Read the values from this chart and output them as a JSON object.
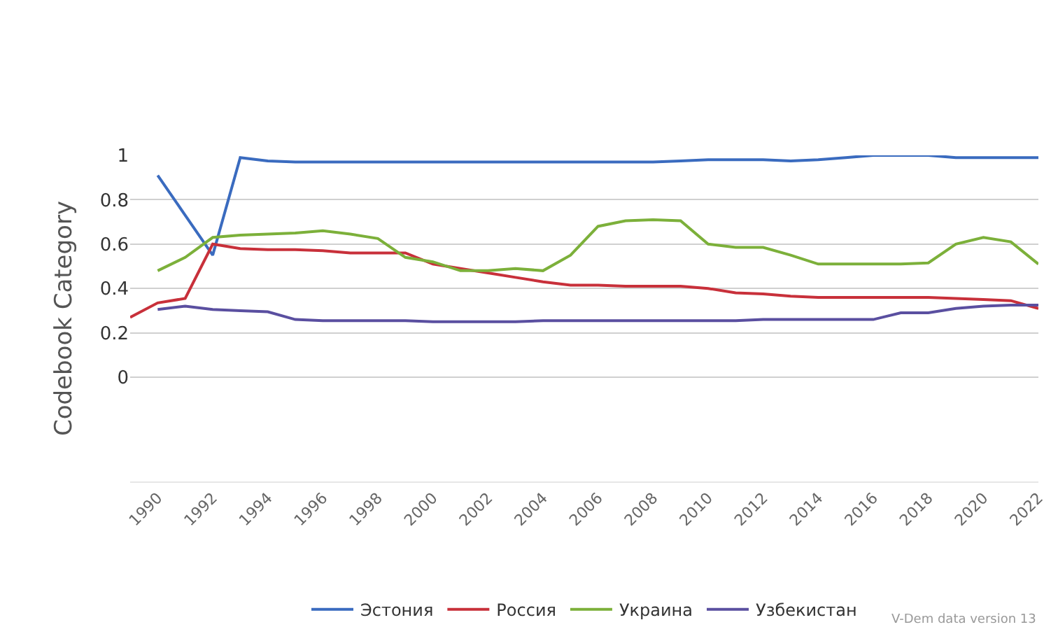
{
  "chart_data": {
    "type": "line",
    "ylabel": "Codebook Category",
    "xlim": [
      1989,
      2022
    ],
    "xticks": [
      1990,
      1992,
      1994,
      1996,
      1998,
      2000,
      2002,
      2004,
      2006,
      2008,
      2010,
      2012,
      2014,
      2016,
      2018,
      2020,
      2022
    ],
    "ylim": [
      -0.47,
      1
    ],
    "yticks": [
      0,
      0.2,
      0.4,
      0.6,
      0.8,
      1
    ],
    "grid": "y",
    "legend": "bottom",
    "marker": "none",
    "line_style": "solid",
    "annotations": [
      "V-Dem data version 13"
    ],
    "series": [
      {
        "name": "Эстония",
        "color": "#3a6bbf",
        "x": [
          1990,
          1991,
          1992,
          1993,
          1994,
          1995,
          1996,
          1997,
          1998,
          1999,
          2000,
          2001,
          2002,
          2003,
          2004,
          2005,
          2006,
          2007,
          2008,
          2009,
          2010,
          2011,
          2012,
          2013,
          2014,
          2015,
          2016,
          2017,
          2018,
          2019,
          2020,
          2021,
          2022
        ],
        "values": [
          0.91,
          0.73,
          0.55,
          0.99,
          0.975,
          0.97,
          0.97,
          0.97,
          0.97,
          0.97,
          0.97,
          0.97,
          0.97,
          0.97,
          0.97,
          0.97,
          0.97,
          0.97,
          0.97,
          0.975,
          0.98,
          0.98,
          0.98,
          0.975,
          0.98,
          0.99,
          1.0,
          1.0,
          1.0,
          0.99,
          0.99,
          0.99,
          0.99
        ]
      },
      {
        "name": "Россия",
        "color": "#c8303a",
        "x": [
          1989,
          1990,
          1991,
          1992,
          1993,
          1994,
          1995,
          1996,
          1997,
          1998,
          1999,
          2000,
          2001,
          2002,
          2003,
          2004,
          2005,
          2006,
          2007,
          2008,
          2009,
          2010,
          2011,
          2012,
          2013,
          2014,
          2015,
          2016,
          2017,
          2018,
          2019,
          2020,
          2021,
          2022
        ],
        "values": [
          0.27,
          0.335,
          0.355,
          0.6,
          0.58,
          0.575,
          0.575,
          0.57,
          0.56,
          0.56,
          0.56,
          0.51,
          0.49,
          0.47,
          0.45,
          0.43,
          0.415,
          0.415,
          0.41,
          0.41,
          0.41,
          0.4,
          0.38,
          0.375,
          0.365,
          0.36,
          0.36,
          0.36,
          0.36,
          0.36,
          0.355,
          0.35,
          0.345,
          0.31
        ]
      },
      {
        "name": "Украина",
        "color": "#7cb03a",
        "x": [
          1990,
          1991,
          1992,
          1993,
          1994,
          1995,
          1996,
          1997,
          1998,
          1999,
          2000,
          2001,
          2002,
          2003,
          2004,
          2005,
          2006,
          2007,
          2008,
          2009,
          2010,
          2011,
          2012,
          2013,
          2014,
          2015,
          2016,
          2017,
          2018,
          2019,
          2020,
          2021,
          2022
        ],
        "values": [
          0.48,
          0.54,
          0.63,
          0.64,
          0.645,
          0.65,
          0.66,
          0.645,
          0.625,
          0.54,
          0.52,
          0.48,
          0.48,
          0.49,
          0.48,
          0.55,
          0.68,
          0.705,
          0.71,
          0.705,
          0.6,
          0.585,
          0.585,
          0.55,
          0.51,
          0.51,
          0.51,
          0.51,
          0.515,
          0.6,
          0.63,
          0.61,
          0.51
        ]
      },
      {
        "name": "Узбекистан",
        "color": "#5a4fa0",
        "x": [
          1990,
          1991,
          1992,
          1993,
          1994,
          1995,
          1996,
          1997,
          1998,
          1999,
          2000,
          2001,
          2002,
          2003,
          2004,
          2005,
          2006,
          2007,
          2008,
          2009,
          2010,
          2011,
          2012,
          2013,
          2014,
          2015,
          2016,
          2017,
          2018,
          2019,
          2020,
          2021,
          2022
        ],
        "values": [
          0.305,
          0.32,
          0.305,
          0.3,
          0.295,
          0.26,
          0.255,
          0.255,
          0.255,
          0.255,
          0.25,
          0.25,
          0.25,
          0.25,
          0.255,
          0.255,
          0.255,
          0.255,
          0.255,
          0.255,
          0.255,
          0.255,
          0.26,
          0.26,
          0.26,
          0.26,
          0.26,
          0.29,
          0.29,
          0.31,
          0.32,
          0.325,
          0.325
        ]
      }
    ]
  }
}
